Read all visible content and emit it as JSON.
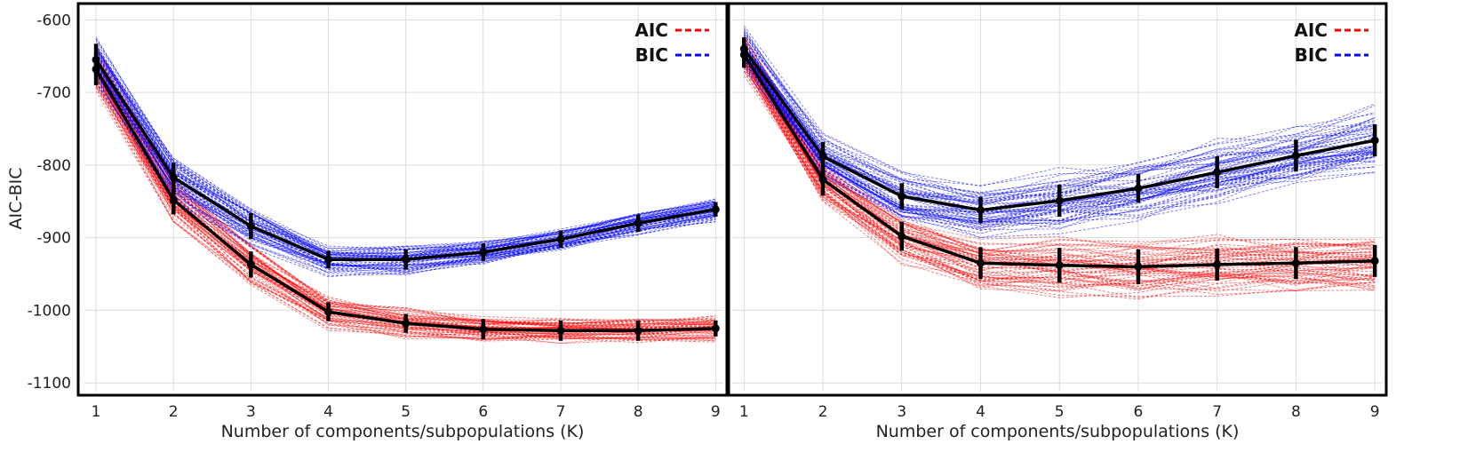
{
  "chart_data": [
    {
      "type": "line",
      "panel": "left",
      "title": "",
      "xlabel": "Number of components/subpopulations (K)",
      "ylabel": "AIC-BIC",
      "x": [
        1,
        2,
        3,
        4,
        5,
        6,
        7,
        8,
        9
      ],
      "xlim": [
        0.85,
        9.1
      ],
      "ylim": [
        -1112,
        -580
      ],
      "yticks": [
        -600,
        -700,
        -800,
        -900,
        -1000,
        -1100
      ],
      "yticklabels": [
        "-600",
        "-700",
        "-800",
        "-900",
        "-1000",
        "-1100"
      ],
      "xticklabels": [
        "1",
        "2",
        "3",
        "4",
        "5",
        "6",
        "7",
        "8",
        "9"
      ],
      "grid": true,
      "legend_position": "top-right",
      "series": [
        {
          "name": "AIC",
          "color": "#ff0000",
          "style": "dashed",
          "mean": [
            -668,
            -848,
            -937,
            -1002,
            -1018,
            -1026,
            -1028,
            -1028,
            -1025
          ],
          "error": [
            22,
            20,
            18,
            13,
            13,
            14,
            14,
            14,
            11
          ],
          "spread": [
            32,
            30,
            28,
            24,
            22,
            18,
            18,
            16,
            18
          ],
          "runs": 60
        },
        {
          "name": "BIC",
          "color": "#0000ff",
          "style": "dashed",
          "mean": [
            -655,
            -817,
            -884,
            -930,
            -930,
            -920,
            -902,
            -880,
            -861
          ],
          "error": [
            22,
            20,
            18,
            12,
            14,
            12,
            12,
            12,
            10
          ],
          "spread": [
            34,
            32,
            28,
            22,
            22,
            18,
            16,
            16,
            18
          ],
          "runs": 60
        }
      ]
    },
    {
      "type": "line",
      "panel": "right",
      "title": "",
      "xlabel": "Number of components/subpopulations (K)",
      "ylabel": "",
      "x": [
        1,
        2,
        3,
        4,
        5,
        6,
        7,
        8,
        9
      ],
      "xlim": [
        0.85,
        9.1
      ],
      "ylim": [
        -1112,
        -580
      ],
      "yticks": [],
      "yticklabels": [],
      "xticklabels": [
        "1",
        "2",
        "3",
        "4",
        "5",
        "6",
        "7",
        "8",
        "9"
      ],
      "grid": true,
      "legend_position": "top-right",
      "series": [
        {
          "name": "AIC",
          "color": "#ff0000",
          "style": "dashed",
          "mean": [
            -648,
            -820,
            -898,
            -935,
            -938,
            -940,
            -937,
            -935,
            -932
          ],
          "error": [
            18,
            22,
            20,
            22,
            24,
            24,
            22,
            22,
            22
          ],
          "spread": [
            30,
            34,
            38,
            42,
            45,
            45,
            45,
            45,
            45
          ],
          "runs": 60
        },
        {
          "name": "BIC",
          "color": "#0000ff",
          "style": "dashed",
          "mean": [
            -640,
            -788,
            -843,
            -862,
            -849,
            -832,
            -810,
            -787,
            -766
          ],
          "error": [
            16,
            20,
            18,
            18,
            22,
            20,
            22,
            22,
            22
          ],
          "spread": [
            32,
            34,
            36,
            40,
            45,
            45,
            45,
            45,
            50
          ],
          "runs": 60
        }
      ]
    }
  ]
}
